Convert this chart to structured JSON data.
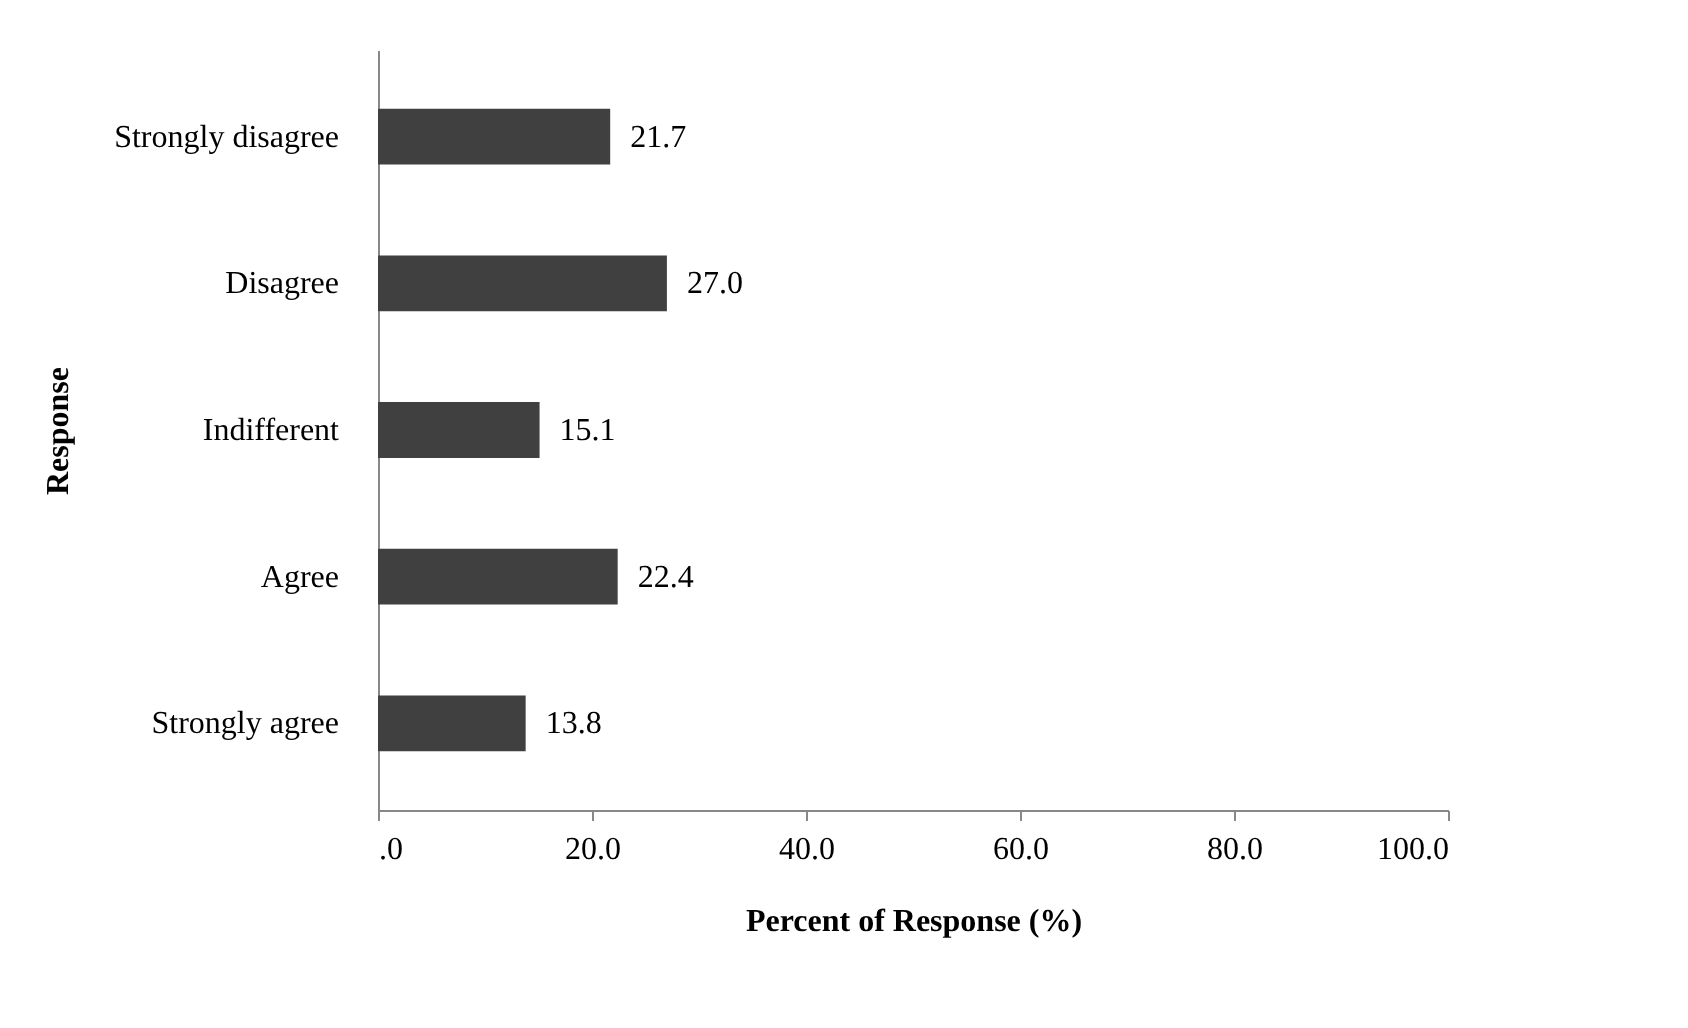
{
  "chart_data": {
    "type": "bar",
    "orientation": "horizontal",
    "xlabel": "Percent of Response (%)",
    "ylabel": "Response",
    "categories": [
      "Strongly disagree",
      "Disagree",
      "Indifferent",
      "Agree",
      "Strongly agree"
    ],
    "values": [
      21.7,
      27.0,
      15.1,
      22.4,
      13.8
    ],
    "value_labels": [
      "21.7",
      "27.0",
      "15.1",
      "22.4",
      "13.8"
    ],
    "color": "#404040",
    "xlim": [
      0,
      100
    ],
    "xticks": [
      {
        "value": 0,
        "label": ".0"
      },
      {
        "value": 20,
        "label": "20.0"
      },
      {
        "value": 40,
        "label": "40.0"
      },
      {
        "value": 60,
        "label": "60.0"
      },
      {
        "value": 80,
        "label": "80.0"
      },
      {
        "value": 100,
        "label": "100.0"
      }
    ],
    "grid": false
  }
}
